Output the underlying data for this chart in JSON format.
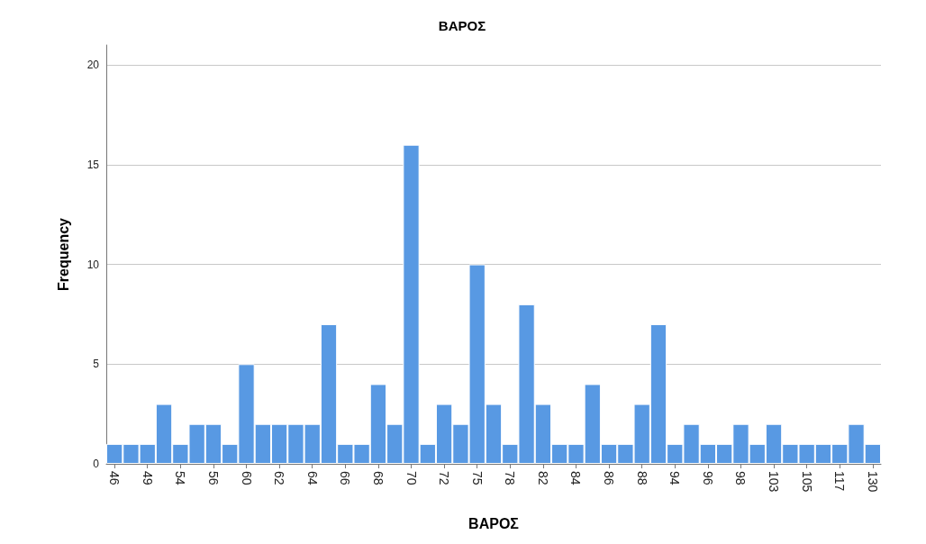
{
  "chart_data": {
    "type": "bar",
    "title": "ΒΑΡΟΣ",
    "xlabel": "ΒΑΡΟΣ",
    "ylabel": "Frequency",
    "categories": [
      "46",
      null,
      "49",
      null,
      "54",
      null,
      "56",
      null,
      "60",
      null,
      "62",
      null,
      "64",
      null,
      "66",
      null,
      "68",
      null,
      "70",
      null,
      "72",
      null,
      "75",
      null,
      "78",
      null,
      "82",
      null,
      "84",
      null,
      "86",
      null,
      "88",
      null,
      "94",
      null,
      "96",
      null,
      "98",
      null,
      "103",
      null,
      "105",
      null,
      "117",
      null,
      "130"
    ],
    "values": [
      1,
      1,
      1,
      3,
      1,
      2,
      2,
      1,
      5,
      2,
      2,
      2,
      2,
      7,
      1,
      1,
      4,
      2,
      16,
      1,
      3,
      2,
      10,
      3,
      1,
      8,
      3,
      1,
      1,
      4,
      1,
      1,
      3,
      7,
      1,
      2,
      1,
      1,
      2,
      1,
      2,
      1,
      1,
      1,
      1,
      2,
      1
    ],
    "color": "#5899e3",
    "ylim": [
      0,
      21
    ],
    "yticks": [
      0,
      5,
      10,
      15,
      20
    ],
    "grid": "y"
  }
}
